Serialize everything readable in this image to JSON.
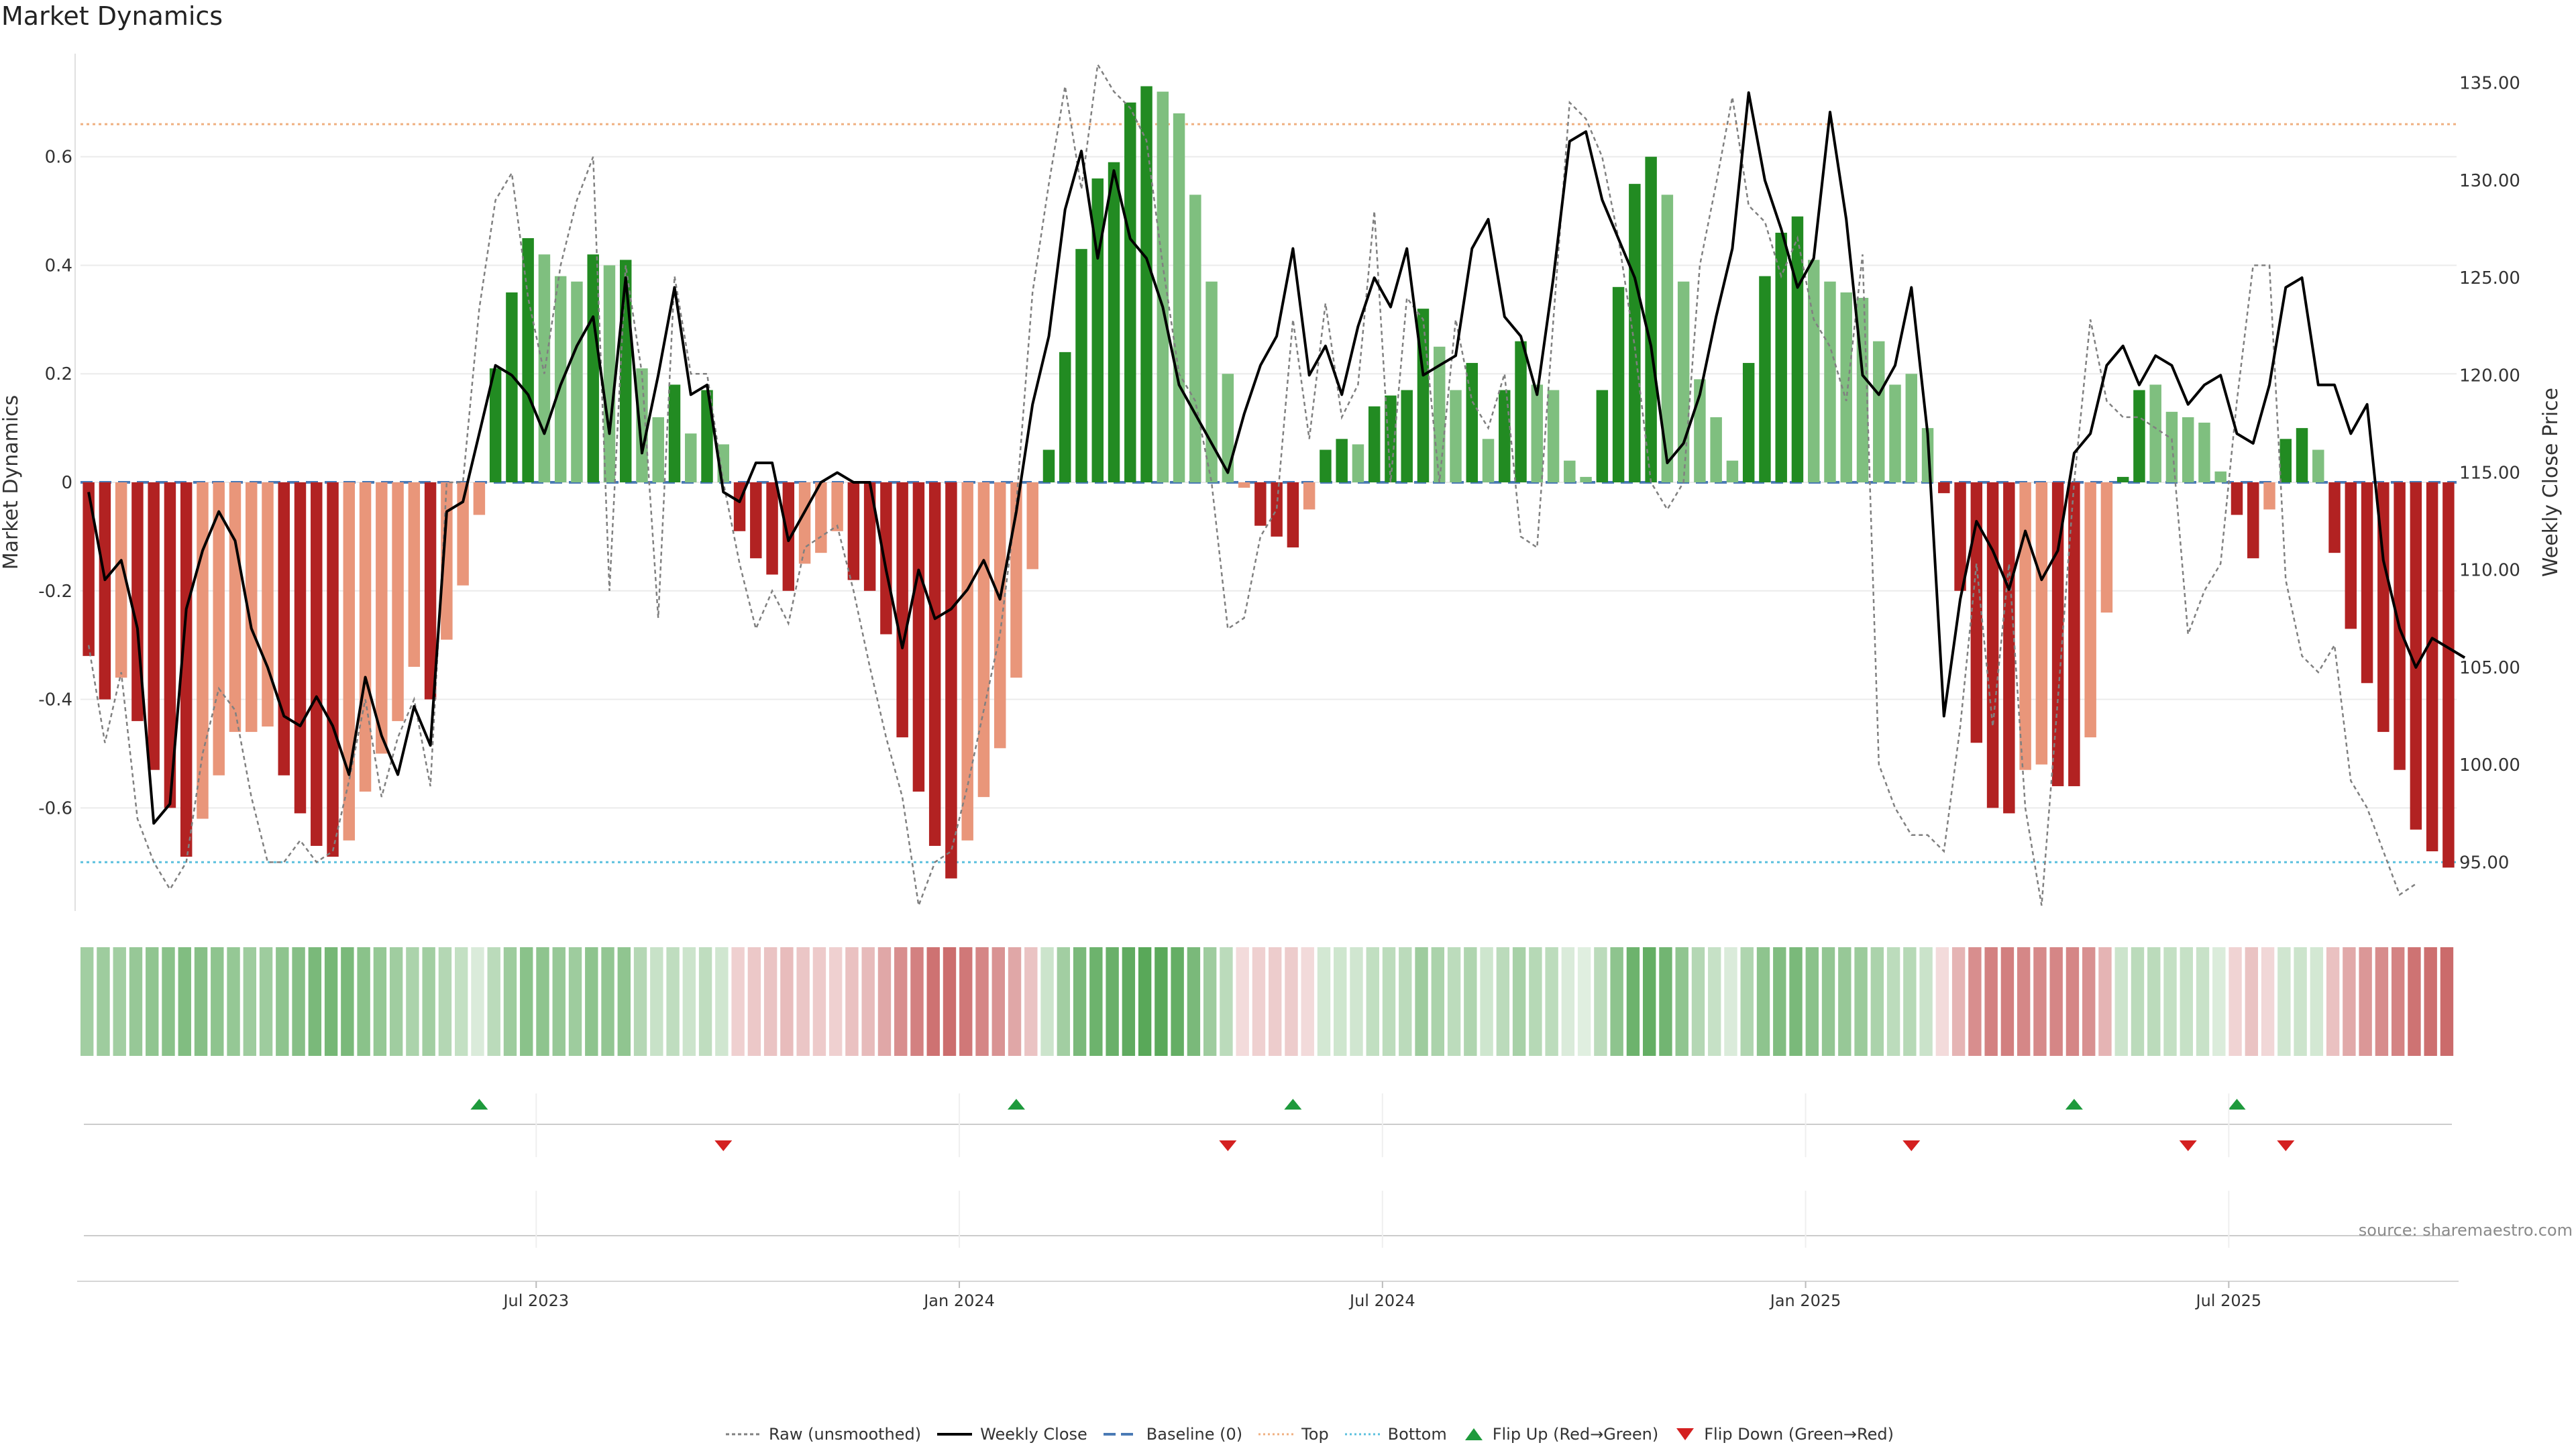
{
  "title": "Market Dynamics",
  "source": "source: sharemaestro.com",
  "chart_data": {
    "type": "bar",
    "title": "Market Dynamics",
    "ylabel": "Market Dynamics",
    "y2label": "Weekly Close Price",
    "ylim": [
      -0.79,
      0.79
    ],
    "y2lim": [
      92.5,
      136.5
    ],
    "yticks": [
      -0.6,
      -0.4,
      -0.2,
      0,
      0.2,
      0.4,
      0.6
    ],
    "ytick_labels": [
      "-0.6",
      "-0.4",
      "-0.2",
      "0",
      "0.2",
      "0.4",
      "0.6"
    ],
    "y2ticks": [
      95,
      100,
      105,
      110,
      115,
      120,
      125,
      130,
      135
    ],
    "y2tick_labels": [
      "95.00",
      "100.00",
      "105.00",
      "110.00",
      "115.00",
      "120.00",
      "125.00",
      "130.00",
      "135.00"
    ],
    "xticks": [
      {
        "index": 28,
        "label": "Jul 2023"
      },
      {
        "index": 54,
        "label": "Jan 2024"
      },
      {
        "index": 80,
        "label": "Jul 2024"
      },
      {
        "index": 106,
        "label": "Jan 2025"
      },
      {
        "index": 132,
        "label": "Jul 2025"
      }
    ],
    "top_level": 0.66,
    "bottom_level": -0.7,
    "baseline": 0,
    "bars": [
      -0.32,
      -0.4,
      -0.36,
      -0.44,
      -0.53,
      -0.6,
      -0.69,
      -0.62,
      -0.54,
      -0.46,
      -0.46,
      -0.45,
      -0.54,
      -0.61,
      -0.67,
      -0.69,
      -0.66,
      -0.57,
      -0.5,
      -0.44,
      -0.34,
      -0.4,
      -0.29,
      -0.19,
      -0.06,
      0.21,
      0.35,
      0.45,
      0.42,
      0.38,
      0.37,
      0.42,
      0.4,
      0.41,
      0.21,
      0.12,
      0.18,
      0.09,
      0.17,
      0.07,
      -0.09,
      -0.14,
      -0.17,
      -0.2,
      -0.15,
      -0.13,
      -0.09,
      -0.18,
      -0.2,
      -0.28,
      -0.47,
      -0.57,
      -0.67,
      -0.73,
      -0.66,
      -0.58,
      -0.49,
      -0.36,
      -0.16,
      0.06,
      0.24,
      0.43,
      0.56,
      0.59,
      0.7,
      0.73,
      0.72,
      0.68,
      0.53,
      0.37,
      0.2,
      -0.01,
      -0.08,
      -0.1,
      -0.12,
      -0.05,
      0.06,
      0.08,
      0.07,
      0.14,
      0.16,
      0.17,
      0.32,
      0.25,
      0.17,
      0.22,
      0.08,
      0.17,
      0.26,
      0.18,
      0.17,
      0.04,
      0.01,
      0.17,
      0.36,
      0.55,
      0.6,
      0.53,
      0.37,
      0.19,
      0.12,
      0.04,
      0.22,
      0.38,
      0.46,
      0.49,
      0.41,
      0.37,
      0.35,
      0.34,
      0.26,
      0.18,
      0.2,
      0.1,
      -0.02,
      -0.2,
      -0.48,
      -0.6,
      -0.61,
      -0.53,
      -0.52,
      -0.56,
      -0.56,
      -0.47,
      -0.24,
      0.01,
      0.17,
      0.18,
      0.13,
      0.12,
      0.11,
      0.02,
      -0.06,
      -0.14,
      -0.05,
      0.08,
      0.1,
      0.06,
      -0.13,
      -0.27,
      -0.37,
      -0.46,
      -0.53,
      -0.64,
      -0.68,
      -0.71
    ],
    "bar_colors": [
      "#b22222",
      "#b22222",
      "#e9967a",
      "#b22222",
      "#b22222",
      "#b22222",
      "#b22222",
      "#e9967a",
      "#e9967a",
      "#e9967a",
      "#e9967a",
      "#e9967a",
      "#b22222",
      "#b22222",
      "#b22222",
      "#b22222",
      "#e9967a",
      "#e9967a",
      "#e9967a",
      "#e9967a",
      "#e9967a",
      "#b22222",
      "#e9967a",
      "#e9967a",
      "#e9967a",
      "#228b22",
      "#228b22",
      "#228b22",
      "#7fbf7f",
      "#7fbf7f",
      "#7fbf7f",
      "#228b22",
      "#7fbf7f",
      "#228b22",
      "#7fbf7f",
      "#7fbf7f",
      "#228b22",
      "#7fbf7f",
      "#228b22",
      "#7fbf7f",
      "#b22222",
      "#b22222",
      "#b22222",
      "#b22222",
      "#e9967a",
      "#e9967a",
      "#e9967a",
      "#b22222",
      "#b22222",
      "#b22222",
      "#b22222",
      "#b22222",
      "#b22222",
      "#b22222",
      "#e9967a",
      "#e9967a",
      "#e9967a",
      "#e9967a",
      "#e9967a",
      "#228b22",
      "#228b22",
      "#228b22",
      "#228b22",
      "#228b22",
      "#228b22",
      "#228b22",
      "#7fbf7f",
      "#7fbf7f",
      "#7fbf7f",
      "#7fbf7f",
      "#7fbf7f",
      "#e9967a",
      "#b22222",
      "#b22222",
      "#b22222",
      "#e9967a",
      "#228b22",
      "#228b22",
      "#7fbf7f",
      "#228b22",
      "#228b22",
      "#228b22",
      "#228b22",
      "#7fbf7f",
      "#7fbf7f",
      "#228b22",
      "#7fbf7f",
      "#228b22",
      "#228b22",
      "#7fbf7f",
      "#7fbf7f",
      "#7fbf7f",
      "#7fbf7f",
      "#228b22",
      "#228b22",
      "#228b22",
      "#228b22",
      "#7fbf7f",
      "#7fbf7f",
      "#7fbf7f",
      "#7fbf7f",
      "#7fbf7f",
      "#228b22",
      "#228b22",
      "#228b22",
      "#228b22",
      "#7fbf7f",
      "#7fbf7f",
      "#7fbf7f",
      "#7fbf7f",
      "#7fbf7f",
      "#7fbf7f",
      "#7fbf7f",
      "#7fbf7f",
      "#b22222",
      "#b22222",
      "#b22222",
      "#b22222",
      "#b22222",
      "#e9967a",
      "#e9967a",
      "#b22222",
      "#b22222",
      "#e9967a",
      "#e9967a",
      "#228b22",
      "#228b22",
      "#7fbf7f",
      "#7fbf7f",
      "#7fbf7f",
      "#7fbf7f",
      "#7fbf7f",
      "#b22222",
      "#b22222",
      "#e9967a",
      "#228b22",
      "#228b22",
      "#7fbf7f",
      "#b22222",
      "#b22222",
      "#b22222",
      "#b22222",
      "#b22222",
      "#b22222",
      "#b22222",
      "#b22222"
    ],
    "weekly_close": [
      114,
      109.5,
      110.5,
      107,
      97,
      98,
      108,
      111,
      113,
      111.5,
      107,
      105,
      102.5,
      102,
      103.5,
      102,
      99.5,
      104.5,
      101.5,
      99.5,
      103,
      101,
      113,
      113.5,
      117,
      120.5,
      120,
      119,
      117,
      119.5,
      121.5,
      123,
      117,
      125,
      116,
      120,
      124.5,
      119,
      119.5,
      114,
      113.5,
      115.5,
      115.5,
      111.5,
      113,
      114.5,
      115,
      114.5,
      114.5,
      110,
      106,
      110,
      107.5,
      108,
      109,
      110.5,
      108.5,
      113,
      118.5,
      122,
      128.5,
      131.5,
      126,
      130.5,
      127,
      126,
      123.5,
      119.5,
      118,
      116.5,
      115,
      118,
      120.5,
      122,
      126.5,
      120,
      121.5,
      119,
      122.5,
      125,
      123.5,
      126.5,
      120,
      120.5,
      121,
      126.5,
      128,
      123,
      122,
      119,
      125,
      132,
      132.5,
      129,
      127,
      125,
      121.5,
      115.5,
      116.5,
      119,
      123,
      126.5,
      134.5,
      130,
      127.5,
      124.5,
      126,
      133.5,
      128,
      120,
      119,
      120.5,
      124.5,
      117,
      102.5,
      108.5,
      112.5,
      111,
      109,
      112,
      109.5,
      111,
      116,
      117,
      120.5,
      121.5,
      119.5,
      121,
      120.5,
      118.5,
      119.5,
      120,
      117,
      116.5,
      119.5,
      124.5,
      125,
      119.5,
      119.5,
      117,
      118.5,
      110.5,
      107,
      105,
      106.5,
      106,
      105.5
    ],
    "raw": [
      -0.3,
      -0.48,
      -0.35,
      -0.62,
      -0.7,
      -0.75,
      -0.7,
      -0.5,
      -0.38,
      -0.42,
      -0.58,
      -0.7,
      -0.7,
      -0.66,
      -0.7,
      -0.68,
      -0.55,
      -0.4,
      -0.58,
      -0.47,
      -0.4,
      -0.56,
      0.0,
      0.0,
      0.32,
      0.52,
      0.57,
      0.34,
      0.2,
      0.4,
      0.52,
      0.6,
      -0.2,
      0.4,
      0.2,
      -0.25,
      0.38,
      0.2,
      0.2,
      0.0,
      -0.15,
      -0.27,
      -0.2,
      -0.26,
      -0.12,
      -0.1,
      -0.08,
      -0.2,
      -0.34,
      -0.47,
      -0.58,
      -0.78,
      -0.7,
      -0.68,
      -0.56,
      -0.42,
      -0.28,
      -0.04,
      0.35,
      0.55,
      0.73,
      0.54,
      0.77,
      0.72,
      0.69,
      0.63,
      0.4,
      0.2,
      0.15,
      0.0,
      -0.27,
      -0.25,
      -0.1,
      -0.05,
      0.3,
      0.08,
      0.33,
      0.12,
      0.18,
      0.5,
      0.0,
      0.34,
      0.3,
      0.0,
      0.3,
      0.15,
      0.1,
      0.2,
      -0.1,
      -0.12,
      0.3,
      0.7,
      0.67,
      0.6,
      0.45,
      0.25,
      0.0,
      -0.05,
      0.0,
      0.4,
      0.55,
      0.71,
      0.51,
      0.48,
      0.38,
      0.45,
      0.3,
      0.25,
      0.15,
      0.42,
      -0.52,
      -0.6,
      -0.65,
      -0.65,
      -0.68,
      -0.45,
      -0.15,
      -0.45,
      -0.15,
      -0.6,
      -0.78,
      -0.4,
      0.0,
      0.3,
      0.15,
      0.12,
      0.12,
      0.1,
      0.08,
      -0.28,
      -0.2,
      -0.15,
      0.15,
      0.4,
      0.4,
      -0.18,
      -0.32,
      -0.35,
      -0.3,
      -0.55,
      -0.6,
      -0.68,
      -0.76,
      -0.74
    ],
    "heat_strip": [
      0.28,
      0.3,
      0.28,
      0.32,
      0.35,
      0.38,
      0.42,
      0.4,
      0.36,
      0.33,
      0.3,
      0.3,
      0.36,
      0.4,
      0.44,
      0.46,
      0.44,
      0.38,
      0.33,
      0.29,
      0.24,
      0.28,
      0.2,
      0.14,
      0.05,
      0.18,
      0.3,
      0.38,
      0.36,
      0.32,
      0.3,
      0.36,
      0.34,
      0.35,
      0.2,
      0.12,
      0.16,
      0.1,
      0.16,
      0.08,
      -0.08,
      -0.12,
      -0.14,
      -0.17,
      -0.13,
      -0.11,
      -0.08,
      -0.15,
      -0.18,
      -0.26,
      -0.36,
      -0.42,
      -0.48,
      -0.5,
      -0.45,
      -0.4,
      -0.34,
      -0.26,
      -0.14,
      0.1,
      0.28,
      0.44,
      0.5,
      0.52,
      0.56,
      0.58,
      0.57,
      0.54,
      0.44,
      0.3,
      0.18,
      -0.04,
      -0.08,
      -0.1,
      -0.1,
      -0.05,
      0.07,
      0.09,
      0.08,
      0.15,
      0.17,
      0.18,
      0.3,
      0.24,
      0.17,
      0.22,
      0.09,
      0.18,
      0.26,
      0.19,
      0.17,
      0.05,
      0.02,
      0.18,
      0.36,
      0.5,
      0.54,
      0.48,
      0.35,
      0.2,
      0.13,
      0.05,
      0.22,
      0.36,
      0.42,
      0.44,
      0.38,
      0.34,
      0.32,
      0.31,
      0.24,
      0.17,
      0.19,
      0.11,
      -0.04,
      -0.2,
      -0.36,
      -0.42,
      -0.43,
      -0.39,
      -0.38,
      -0.4,
      -0.4,
      -0.35,
      -0.2,
      0.1,
      0.18,
      0.18,
      0.14,
      0.13,
      0.12,
      0.04,
      -0.07,
      -0.14,
      -0.06,
      0.08,
      0.1,
      0.07,
      -0.15,
      -0.25,
      -0.32,
      -0.37,
      -0.41,
      -0.47,
      -0.49,
      -0.51
    ],
    "flip_up_indices": [
      24,
      57,
      74,
      122,
      132
    ],
    "flip_down_indices": [
      39,
      70,
      112,
      129,
      135
    ],
    "legend": [
      "Raw (unsmoothed)",
      "Weekly Close",
      "Baseline (0)",
      "Top",
      "Bottom",
      "Flip Up (Red→Green)",
      "Flip Down (Green→Red)"
    ]
  },
  "colors": {
    "strong_green": "#228b22",
    "light_green": "#7fbf7f",
    "strong_red": "#b22222",
    "light_red": "#e9967a",
    "close_line": "#000000",
    "raw_line": "#808080",
    "baseline": "#4a7ab5",
    "top_line": "#f0b080",
    "bottom_line": "#5bc0de",
    "flip_up": "#1e9a3c",
    "flip_down": "#d42020"
  }
}
